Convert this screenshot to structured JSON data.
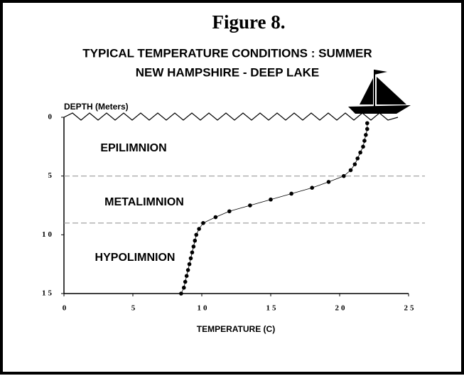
{
  "chart_data": {
    "type": "line",
    "title": "Figure 8.",
    "subtitle": [
      "TYPICAL TEMPERATURE CONDITIONS : SUMMER",
      "NEW HAMPSHIRE - DEEP LAKE"
    ],
    "x_label": "TEMPERATURE (C)",
    "y_label": "DEPTH (Meters)",
    "annotations": [
      "EPILIMNION",
      "METALIMNION",
      "HYPOLIMNION"
    ],
    "x": [
      22.0,
      22.0,
      21.9,
      21.8,
      21.7,
      21.5,
      21.3,
      21.1,
      20.8,
      20.3,
      19.2,
      18.0,
      16.5,
      15.0,
      13.5,
      12.0,
      11.0,
      10.1,
      9.8,
      9.6,
      9.5,
      9.4,
      9.3,
      9.2,
      9.1,
      9.0,
      8.9,
      8.8,
      8.7,
      8.5
    ],
    "values": [
      0.5,
      1,
      1.5,
      2,
      2.5,
      3,
      3.5,
      4,
      4.5,
      5,
      5.5,
      6,
      6.5,
      7,
      7.5,
      8,
      8.5,
      9,
      9.5,
      10,
      10.5,
      11,
      11.5,
      12,
      12.5,
      13,
      13.5,
      14,
      14.5,
      15
    ],
    "color": "#000000",
    "reference_lines": [
      5,
      9
    ],
    "xlim": [
      0,
      25
    ],
    "xticks": [
      0,
      5,
      10,
      15,
      20,
      25
    ],
    "ylim": [
      0,
      15
    ],
    "yticks": [
      0,
      5,
      10,
      15
    ],
    "y_inverted": true
  }
}
